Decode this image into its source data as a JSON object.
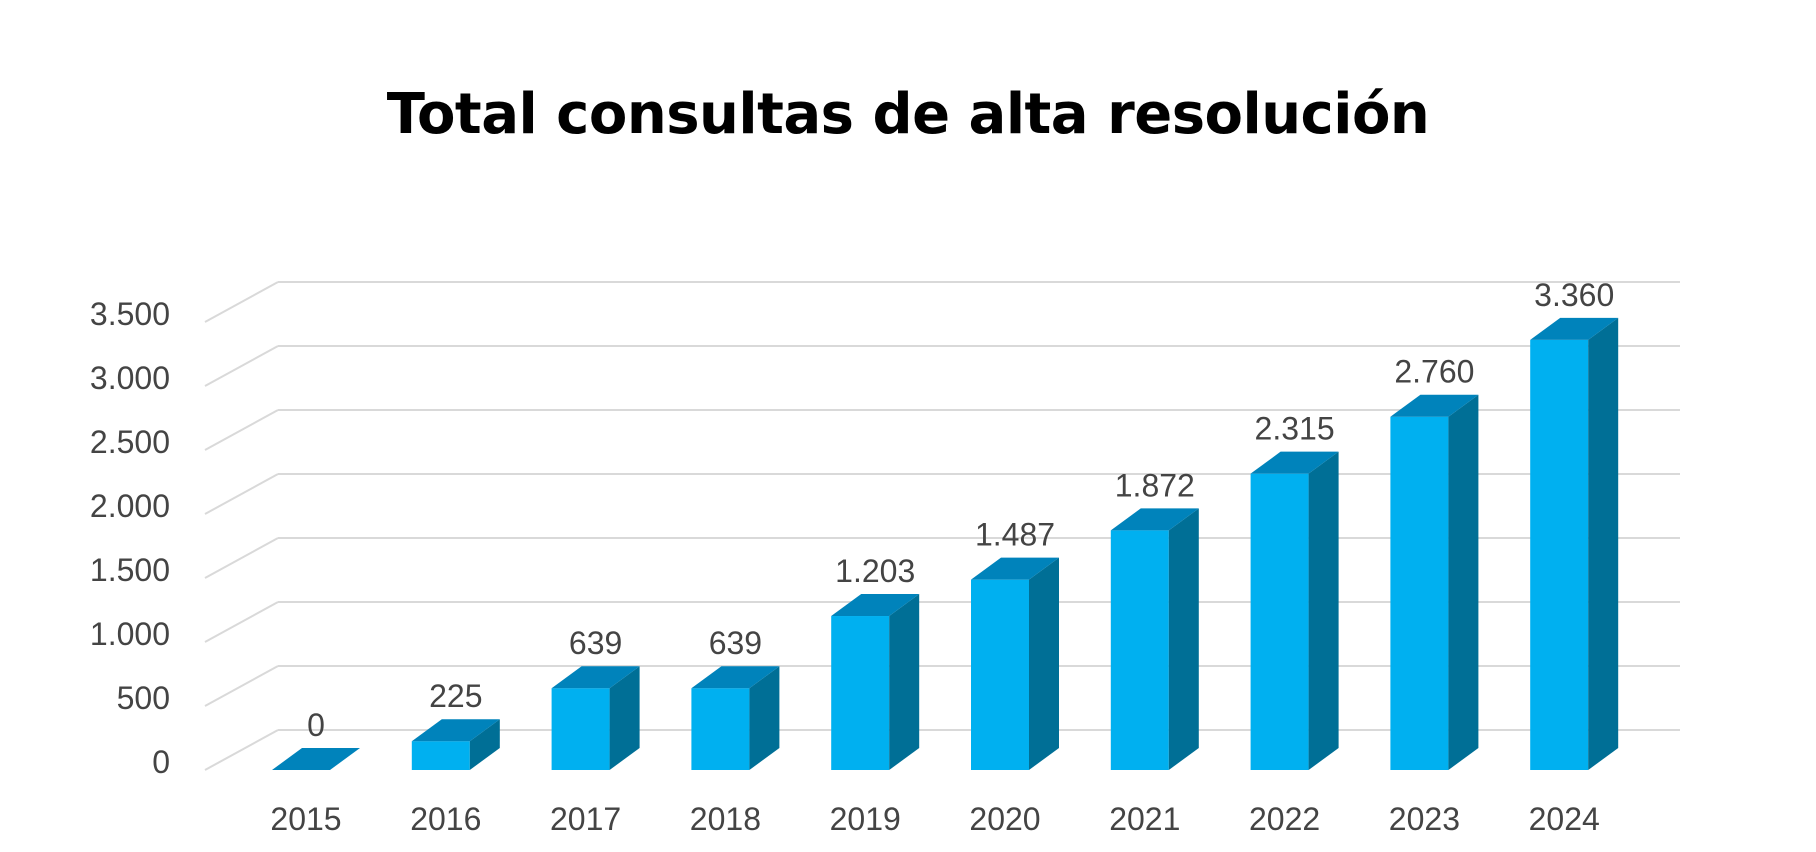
{
  "chart_data": {
    "type": "bar",
    "title": "Total consultas de alta resolución",
    "xlabel": "",
    "ylabel": "",
    "categories": [
      "2015",
      "2016",
      "2017",
      "2018",
      "2019",
      "2020",
      "2021",
      "2022",
      "2023",
      "2024"
    ],
    "values": [
      0,
      225,
      639,
      639,
      1203,
      1487,
      1872,
      2315,
      2760,
      3360
    ],
    "value_labels": [
      "0",
      "225",
      "639",
      "639",
      "1.203",
      "1.487",
      "1.872",
      "2.315",
      "2.760",
      "3.360"
    ],
    "ylim": [
      0,
      3500
    ],
    "yticks": [
      0,
      500,
      1000,
      1500,
      2000,
      2500,
      3000,
      3500
    ],
    "ytick_labels": [
      "0",
      "500",
      "1.000",
      "1.500",
      "2.000",
      "2.500",
      "3.000",
      "3.500"
    ],
    "grid": true,
    "style": "3d-column",
    "colors": {
      "front": "#00b0f0",
      "side": "#006f96",
      "top": "#0083bb",
      "grid": "#d9d9d9",
      "text": "#444444"
    }
  }
}
